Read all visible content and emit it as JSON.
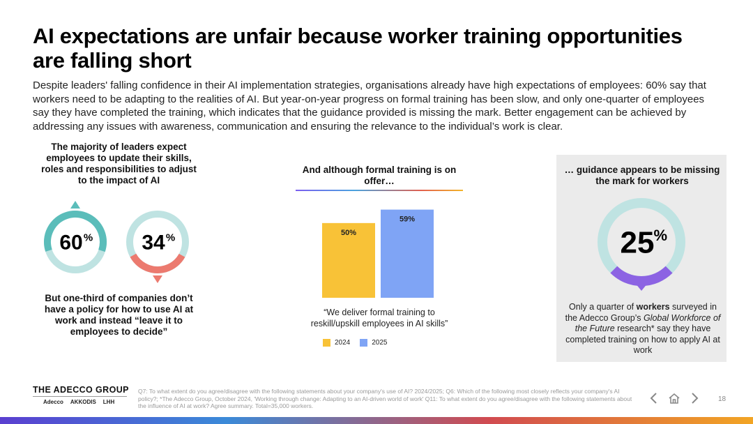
{
  "title": "AI expectations are unfair because worker training opportunities are falling short",
  "intro": "Despite leaders' falling confidence in their AI implementation strategies, organisations already have high expectations of employees: 60% say that workers need to be adapting to the realities of AI. But year-on-year progress on formal training has been slow, and only one-quarter of employees say they have completed the training, which indicates that the guidance provided is missing the mark. Better engagement can be achieved by addressing any issues with awareness, communication and ensuring the relevance to the individual’s work is clear.",
  "left": {
    "heading": "The majority of leaders expect employees to update their skills, roles and responsibilities to adjust to the impact of AI",
    "bottom_text": "But one-third of companies don’t have a policy for how to use AI at work and instead “leave it to employees to decide”"
  },
  "middle": {
    "heading": "And although formal training is on offer…",
    "quote": "“We deliver formal training to reskill/upskill employees in AI skills”"
  },
  "right": {
    "heading": "… guidance appears to be missing the mark for workers",
    "text_prefix": "Only a quarter of ",
    "text_bold": "workers",
    "text_mid": " surveyed in the Adecco Group’s ",
    "text_italic": "Global Workforce of the Future",
    "text_suffix": " research* say they have completed training on how to apply AI at work"
  },
  "chart_data": [
    {
      "type": "pie",
      "chart": "donut-left",
      "values": [
        60
      ],
      "label": "60",
      "unit": "%",
      "colors": {
        "fill": "#5bbdba",
        "track": "#bfe3e2"
      }
    },
    {
      "type": "pie",
      "chart": "donut-right",
      "values": [
        34
      ],
      "label": "34",
      "unit": "%",
      "colors": {
        "fill": "#ec7a6f",
        "track": "#bfe3e2"
      }
    },
    {
      "type": "bar",
      "categories": [
        "2024",
        "2025"
      ],
      "values": [
        50,
        59
      ],
      "value_labels": [
        "50%",
        "59%"
      ],
      "ylim": [
        0,
        70
      ],
      "colors": [
        "#f8c237",
        "#7fa4f5"
      ],
      "legend": [
        {
          "label": "2024",
          "color": "#f8c237"
        },
        {
          "label": "2025",
          "color": "#7fa4f5"
        }
      ],
      "legend_position": "bottom-left"
    },
    {
      "type": "pie",
      "chart": "donut-big",
      "values": [
        25
      ],
      "label": "25",
      "unit": "%",
      "colors": {
        "fill": "#8c63e3",
        "track": "#bfe3e2"
      }
    }
  ],
  "footer": {
    "brand": "THE ADECCO GROUP",
    "sub_brands": [
      "Adecco",
      "AKKODIS",
      "LHH"
    ],
    "footnote": "Q7: To what extent do you agree/disagree with the following statements about your company's use of AI? 2024/2025; Q6: Which of the following most closely reflects your company's AI policy?; *The Adecco Group, October 2024, 'Working through change: Adapting to an AI-driven world of work' Q11: To what extent do you agree/disagree with the following statements about the influence of AI at work? Agree summary. Total=35,000 workers.",
    "page_number": "18",
    "icons": [
      "chevron-left-icon",
      "home-icon",
      "chevron-right-icon"
    ]
  }
}
